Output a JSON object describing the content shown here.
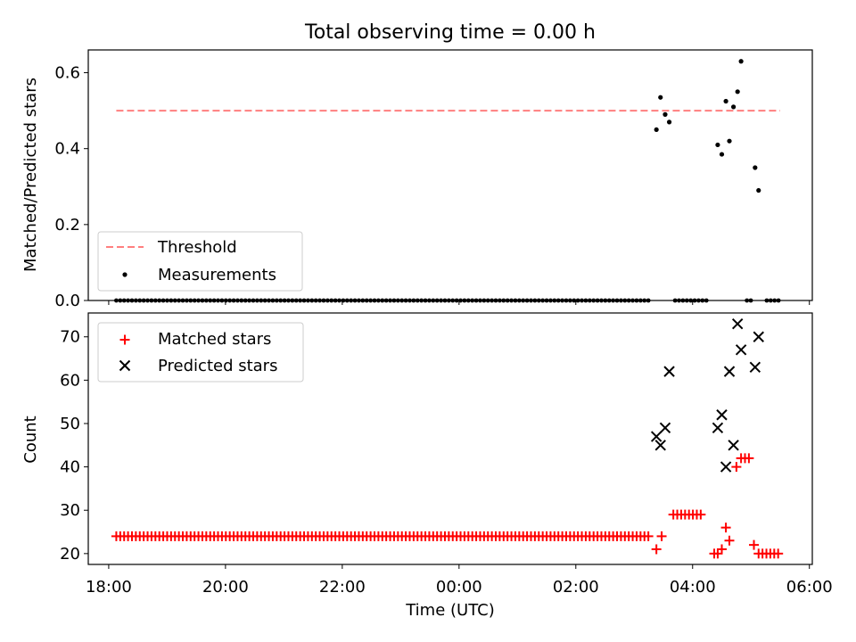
{
  "figure_title": "Total observing time = 0.00 h",
  "chart_data": [
    {
      "type": "scatter",
      "panel": "top",
      "title": "Total observing time = 0.00 h",
      "xlabel": "",
      "ylabel": "Matched/Predicted stars",
      "ylim": [
        0,
        0.66
      ],
      "yticks": [
        0.0,
        0.2,
        0.4,
        0.6
      ],
      "ytick_labels": [
        "0.0",
        "0.2",
        "0.4",
        "0.6"
      ],
      "xlim_hours": [
        17.65,
        30.05
      ],
      "xticks_hours": [
        18,
        20,
        22,
        24,
        26,
        28,
        30
      ],
      "legend": "lower-left",
      "grid": false,
      "series": [
        {
          "name": "Threshold",
          "style": "dashed-line",
          "color": "#ff7f7f",
          "x_hours": [
            18.13,
            29.5
          ],
          "values": [
            0.5,
            0.5
          ]
        },
        {
          "name": "Measurements",
          "style": "dot",
          "color": "#000000",
          "zero_run_hours": [
            [
              18.13,
              27.3
            ],
            [
              27.7,
              28.3
            ],
            [
              28.93,
              29.0
            ],
            [
              29.27,
              29.5
            ]
          ],
          "zero_run_step_hours": 0.067,
          "points": [
            [
              27.38,
              0.45
            ],
            [
              27.45,
              0.535
            ],
            [
              27.53,
              0.49
            ],
            [
              27.6,
              0.47
            ],
            [
              28.43,
              0.41
            ],
            [
              28.5,
              0.385
            ],
            [
              28.57,
              0.525
            ],
            [
              28.63,
              0.42
            ],
            [
              28.7,
              0.51
            ],
            [
              28.77,
              0.55
            ],
            [
              28.83,
              0.63
            ],
            [
              29.07,
              0.35
            ],
            [
              29.13,
              0.29
            ]
          ]
        }
      ]
    },
    {
      "type": "scatter",
      "panel": "bottom",
      "xlabel": "Time (UTC)",
      "ylabel": "Count",
      "ylim": [
        17.5,
        75.5
      ],
      "yticks": [
        20,
        30,
        40,
        50,
        60,
        70
      ],
      "ytick_labels": [
        "20",
        "30",
        "40",
        "50",
        "60",
        "70"
      ],
      "xlim_hours": [
        17.65,
        30.05
      ],
      "xticks_hours": [
        18,
        20,
        22,
        24,
        26,
        28,
        30
      ],
      "xtick_labels": [
        "18:00",
        "20:00",
        "22:00",
        "00:00",
        "02:00",
        "04:00",
        "06:00"
      ],
      "legend": "upper-left",
      "grid": false,
      "series": [
        {
          "name": "Matched stars",
          "marker": "plus",
          "color": "#ff0000",
          "run_step_hours": 0.067,
          "runs": [
            {
              "from": 18.13,
              "to": 27.3,
              "value": 24
            },
            {
              "from": 27.47,
              "to": 27.53,
              "value": 24
            },
            {
              "from": 27.67,
              "to": 28.2,
              "value": 29
            },
            {
              "from": 28.83,
              "to": 28.97,
              "value": 42
            },
            {
              "from": 29.13,
              "to": 29.5,
              "value": 20
            }
          ],
          "points": [
            [
              27.38,
              21
            ],
            [
              28.37,
              20
            ],
            [
              28.43,
              20
            ],
            [
              28.5,
              21
            ],
            [
              28.57,
              26
            ],
            [
              28.63,
              23
            ],
            [
              28.75,
              40
            ],
            [
              29.05,
              22
            ]
          ]
        },
        {
          "name": "Predicted stars",
          "marker": "x",
          "color": "#000000",
          "points": [
            [
              27.38,
              47
            ],
            [
              27.45,
              45
            ],
            [
              27.53,
              49
            ],
            [
              27.6,
              62
            ],
            [
              28.43,
              49
            ],
            [
              28.5,
              52
            ],
            [
              28.57,
              40
            ],
            [
              28.63,
              62
            ],
            [
              28.7,
              45
            ],
            [
              28.77,
              73
            ],
            [
              28.83,
              67
            ],
            [
              29.07,
              63
            ],
            [
              29.13,
              70
            ]
          ]
        }
      ]
    }
  ]
}
